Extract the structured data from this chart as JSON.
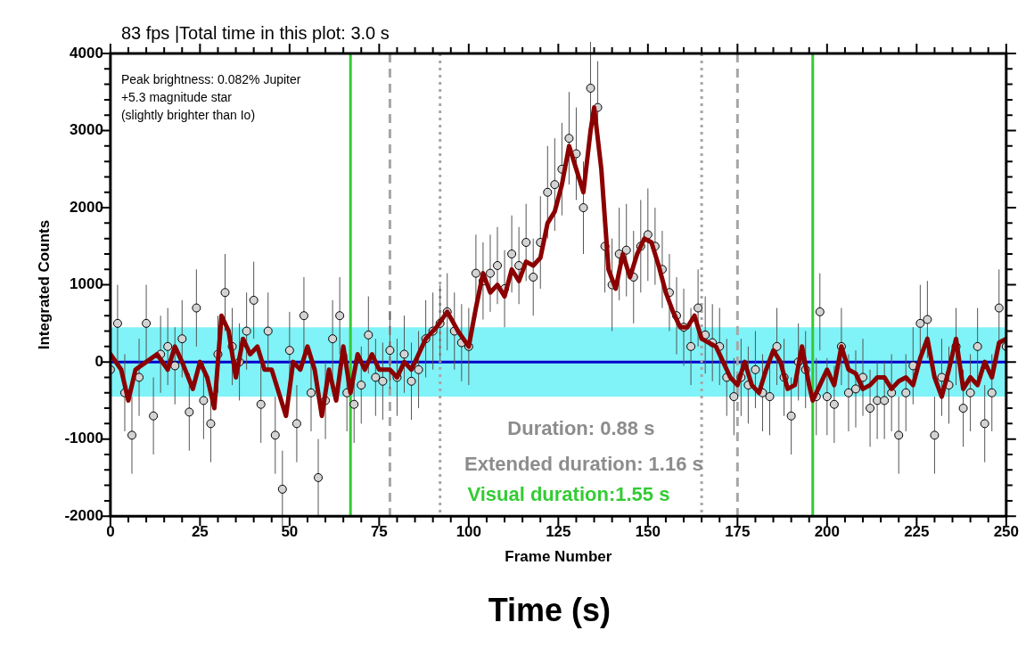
{
  "chart_data": {
    "type": "scatter",
    "title": "83 fps |Total time in this plot: 3.0 s",
    "xlabel": "Frame Number",
    "ylabel": "Integrated Counts",
    "annotations": [
      "Peak brightness: 0.082% Jupiter",
      "+5.3 magnitude star",
      "(slightly brighter than Io)",
      "Duration: 0.88 s",
      "Extended duration: 1.16 s",
      "Visual duration:1.55 s",
      "Time (s)"
    ],
    "xlim": [
      0,
      250
    ],
    "ylim": [
      -2000,
      4000
    ],
    "xticks": [
      0,
      {
        "value": 5,
        "label": null
      },
      {
        "value": 10,
        "label": null
      },
      {
        "value": 15,
        "label": null
      },
      {
        "value": 20,
        "label": null
      },
      25,
      {
        "value": 30,
        "label": null
      },
      {
        "value": 35,
        "label": null
      },
      {
        "value": 40,
        "label": null
      },
      {
        "value": 45,
        "label": null
      },
      50,
      {
        "value": 55,
        "label": null
      },
      {
        "value": 60,
        "label": null
      },
      {
        "value": 65,
        "label": null
      },
      {
        "value": 70,
        "label": null
      },
      75,
      {
        "value": 80,
        "label": null
      },
      {
        "value": 85,
        "label": null
      },
      {
        "value": 90,
        "label": null
      },
      {
        "value": 95,
        "label": null
      },
      100,
      {
        "value": 105,
        "label": null
      },
      {
        "value": 110,
        "label": null
      },
      {
        "value": 115,
        "label": null
      },
      {
        "value": 120,
        "label": null
      },
      125,
      {
        "value": 130,
        "label": null
      },
      {
        "value": 135,
        "label": null
      },
      {
        "value": 140,
        "label": null
      },
      {
        "value": 145,
        "label": null
      },
      150,
      {
        "value": 155,
        "label": null
      },
      {
        "value": 160,
        "label": null
      },
      {
        "value": 165,
        "label": null
      },
      {
        "value": 170,
        "label": null
      },
      175,
      {
        "value": 180,
        "label": null
      },
      {
        "value": 185,
        "label": null
      },
      {
        "value": 190,
        "label": null
      },
      {
        "value": 195,
        "label": null
      },
      200,
      {
        "value": 205,
        "label": null
      },
      {
        "value": 210,
        "label": null
      },
      {
        "value": 215,
        "label": null
      },
      {
        "value": 220,
        "label": null
      },
      225,
      {
        "value": 230,
        "label": null
      },
      {
        "value": 235,
        "label": null
      },
      {
        "value": 240,
        "label": null
      },
      {
        "value": 245,
        "label": null
      },
      250
    ],
    "yticks": [
      -2000,
      {
        "value": -1800,
        "label": null
      },
      {
        "value": -1600,
        "label": null
      },
      {
        "value": -1400,
        "label": null
      },
      {
        "value": -1200,
        "label": null
      },
      -1000,
      {
        "value": -800,
        "label": null
      },
      {
        "value": -600,
        "label": null
      },
      {
        "value": -400,
        "label": null
      },
      {
        "value": -200,
        "label": null
      },
      0,
      {
        "value": 200,
        "label": null
      },
      {
        "value": 400,
        "label": null
      },
      {
        "value": 600,
        "label": null
      },
      {
        "value": 800,
        "label": null
      },
      1000,
      {
        "value": 1200,
        "label": null
      },
      {
        "value": 1400,
        "label": null
      },
      {
        "value": 1600,
        "label": null
      },
      {
        "value": 1800,
        "label": null
      },
      2000,
      {
        "value": 2200,
        "label": null
      },
      {
        "value": 2400,
        "label": null
      },
      {
        "value": 2600,
        "label": null
      },
      {
        "value": 2800,
        "label": null
      },
      3000,
      {
        "value": 3200,
        "label": null
      },
      {
        "value": 3400,
        "label": null
      },
      {
        "value": 3600,
        "label": null
      },
      {
        "value": 3800,
        "label": null
      },
      4000
    ],
    "grid": false,
    "legend": false,
    "bands": [
      {
        "axis": "y",
        "from": -450,
        "to": 450,
        "color": "#7ff3f7"
      }
    ],
    "ref_lines": [
      {
        "axis": "y",
        "value": 0,
        "color": "#0000cc",
        "line_style": "solid"
      },
      {
        "axis": "x",
        "value": 67,
        "color": "#33cc33",
        "line_style": "solid"
      },
      {
        "axis": "x",
        "value": 196,
        "color": "#33cc33",
        "line_style": "solid"
      },
      {
        "axis": "x",
        "value": 78,
        "color": "#a6a6a6",
        "line_style": "dashed"
      },
      {
        "axis": "x",
        "value": 175,
        "color": "#a6a6a6",
        "line_style": "dashed"
      },
      {
        "axis": "x",
        "value": 92,
        "color": "#a6a6a6",
        "line_style": "dotted"
      },
      {
        "axis": "x",
        "value": 165,
        "color": "#a6a6a6",
        "line_style": "dotted"
      }
    ],
    "series": [
      {
        "color": "#d3d3d3",
        "marker": "circle",
        "x": [
          0,
          2,
          4,
          6,
          8,
          10,
          12,
          14,
          16,
          18,
          20,
          22,
          24,
          26,
          28,
          30,
          32,
          34,
          36,
          38,
          40,
          42,
          44,
          46,
          48,
          50,
          52,
          54,
          56,
          58,
          60,
          62,
          64,
          66,
          68,
          70,
          72,
          74,
          76,
          78,
          80,
          82,
          84,
          86,
          88,
          90,
          92,
          94,
          96,
          98,
          100,
          102,
          104,
          106,
          108,
          110,
          112,
          114,
          116,
          118,
          120,
          122,
          124,
          126,
          128,
          130,
          132,
          134,
          136,
          138,
          140,
          142,
          144,
          146,
          148,
          150,
          152,
          154,
          156,
          158,
          160,
          162,
          164,
          166,
          168,
          170,
          172,
          174,
          176,
          178,
          180,
          182,
          184,
          186,
          188,
          190,
          192,
          194,
          197,
          198,
          200,
          202,
          204,
          206,
          208,
          210,
          212,
          214,
          216,
          218,
          220,
          222,
          224,
          226,
          228,
          230,
          232,
          234,
          236,
          238,
          240,
          242,
          244,
          246,
          248,
          250
        ],
        "values": [
          -100,
          500,
          -400,
          -950,
          -200,
          500,
          -700,
          100,
          200,
          -50,
          300,
          -650,
          700,
          -500,
          -800,
          100,
          900,
          200,
          0,
          400,
          800,
          -550,
          400,
          -950,
          -1650,
          150,
          -800,
          600,
          -400,
          -1500,
          -500,
          300,
          600,
          -400,
          -550,
          -300,
          350,
          -200,
          -250,
          150,
          -200,
          100,
          -250,
          -100,
          300,
          400,
          500,
          650,
          400,
          250,
          200,
          1150,
          1050,
          1150,
          1250,
          950,
          1400,
          1250,
          1550,
          1100,
          1550,
          2200,
          2300,
          2500,
          2900,
          2700,
          2000,
          3550,
          3300,
          1500,
          1000,
          1400,
          1450,
          1100,
          1500,
          1650,
          1500,
          1200,
          900,
          600,
          450,
          200,
          700,
          350,
          250,
          200,
          -200,
          -450,
          -200,
          -300,
          -100,
          -400,
          -450,
          200,
          -200,
          -700,
          0,
          -100,
          -450,
          650,
          -450,
          -550,
          200,
          -400,
          -350,
          -200,
          -600,
          -500,
          -500,
          -400,
          -950,
          -400,
          -50,
          500,
          550,
          -950,
          -200,
          -300,
          200,
          -600,
          -400,
          200,
          -800,
          -400,
          700,
          200
        ],
        "errors": [
          500,
          500,
          500,
          500,
          500,
          500,
          500,
          500,
          500,
          500,
          500,
          500,
          500,
          500,
          500,
          500,
          500,
          500,
          500,
          500,
          500,
          500,
          500,
          500,
          500,
          500,
          500,
          500,
          500,
          500,
          500,
          500,
          500,
          500,
          500,
          500,
          500,
          500,
          500,
          500,
          500,
          500,
          500,
          500,
          500,
          500,
          500,
          500,
          500,
          500,
          500,
          500,
          500,
          500,
          500,
          500,
          500,
          500,
          500,
          500,
          600,
          600,
          600,
          600,
          600,
          600,
          600,
          600,
          600,
          600,
          600,
          600,
          600,
          600,
          600,
          600,
          500,
          500,
          500,
          500,
          500,
          500,
          500,
          500,
          500,
          500,
          500,
          500,
          500,
          500,
          500,
          500,
          500,
          500,
          500,
          500,
          500,
          500,
          500,
          500,
          500,
          500,
          500,
          500,
          500,
          500,
          500,
          500,
          500,
          500,
          500,
          500,
          500,
          500,
          500,
          500,
          500,
          500,
          500,
          500,
          500,
          500,
          500,
          500,
          500,
          500
        ]
      },
      {
        "type": "line",
        "color": "#8b0000",
        "marker": "none",
        "x": [
          0,
          3,
          5,
          7,
          10,
          13,
          16,
          18,
          20,
          23,
          25,
          27,
          29,
          31,
          33,
          35,
          37,
          39,
          41,
          43,
          45,
          47,
          49,
          51,
          53,
          55,
          57,
          59,
          61,
          63,
          65,
          67,
          69,
          71,
          73,
          75,
          78,
          80,
          82,
          84,
          86,
          88,
          91,
          94,
          97,
          100,
          102,
          104,
          106,
          108,
          110,
          112,
          114,
          116,
          118,
          120,
          122,
          124,
          126,
          128,
          130,
          132,
          134,
          135,
          137,
          139,
          141,
          143,
          145,
          147,
          149,
          151,
          153,
          155,
          157,
          159,
          161,
          163,
          165,
          167,
          169,
          171,
          173,
          175,
          177,
          179,
          181,
          183,
          185,
          187,
          189,
          191,
          193,
          195,
          196,
          198,
          200,
          202,
          204,
          206,
          208,
          210,
          212,
          214,
          216,
          218,
          220,
          222,
          224,
          226,
          228,
          230,
          232,
          234,
          236,
          238,
          240,
          242,
          244,
          246,
          248,
          250
        ],
        "values": [
          100,
          -100,
          -500,
          -100,
          0,
          100,
          -100,
          200,
          0,
          -350,
          0,
          -200,
          -600,
          600,
          400,
          -200,
          300,
          100,
          200,
          -100,
          -100,
          -400,
          -700,
          0,
          -100,
          200,
          -100,
          -700,
          -100,
          -500,
          200,
          -400,
          100,
          -100,
          100,
          -100,
          -100,
          -200,
          0,
          -100,
          100,
          300,
          450,
          650,
          400,
          200,
          700,
          1150,
          900,
          1000,
          850,
          1200,
          1050,
          1300,
          1250,
          1350,
          1800,
          1950,
          2300,
          2800,
          2500,
          2200,
          3000,
          3300,
          2500,
          1200,
          950,
          1400,
          1100,
          1400,
          1600,
          1550,
          1250,
          900,
          650,
          450,
          450,
          600,
          300,
          250,
          200,
          0,
          -200,
          -300,
          0,
          -300,
          -400,
          -100,
          150,
          0,
          -350,
          -300,
          200,
          -300,
          -500,
          -300,
          -100,
          -300,
          200,
          -100,
          -150,
          -350,
          -300,
          -200,
          -200,
          -350,
          -250,
          -200,
          -300,
          50,
          300,
          -200,
          -450,
          -100,
          300,
          -350,
          -200,
          -300,
          0,
          -200,
          250,
          300
        ]
      }
    ]
  }
}
